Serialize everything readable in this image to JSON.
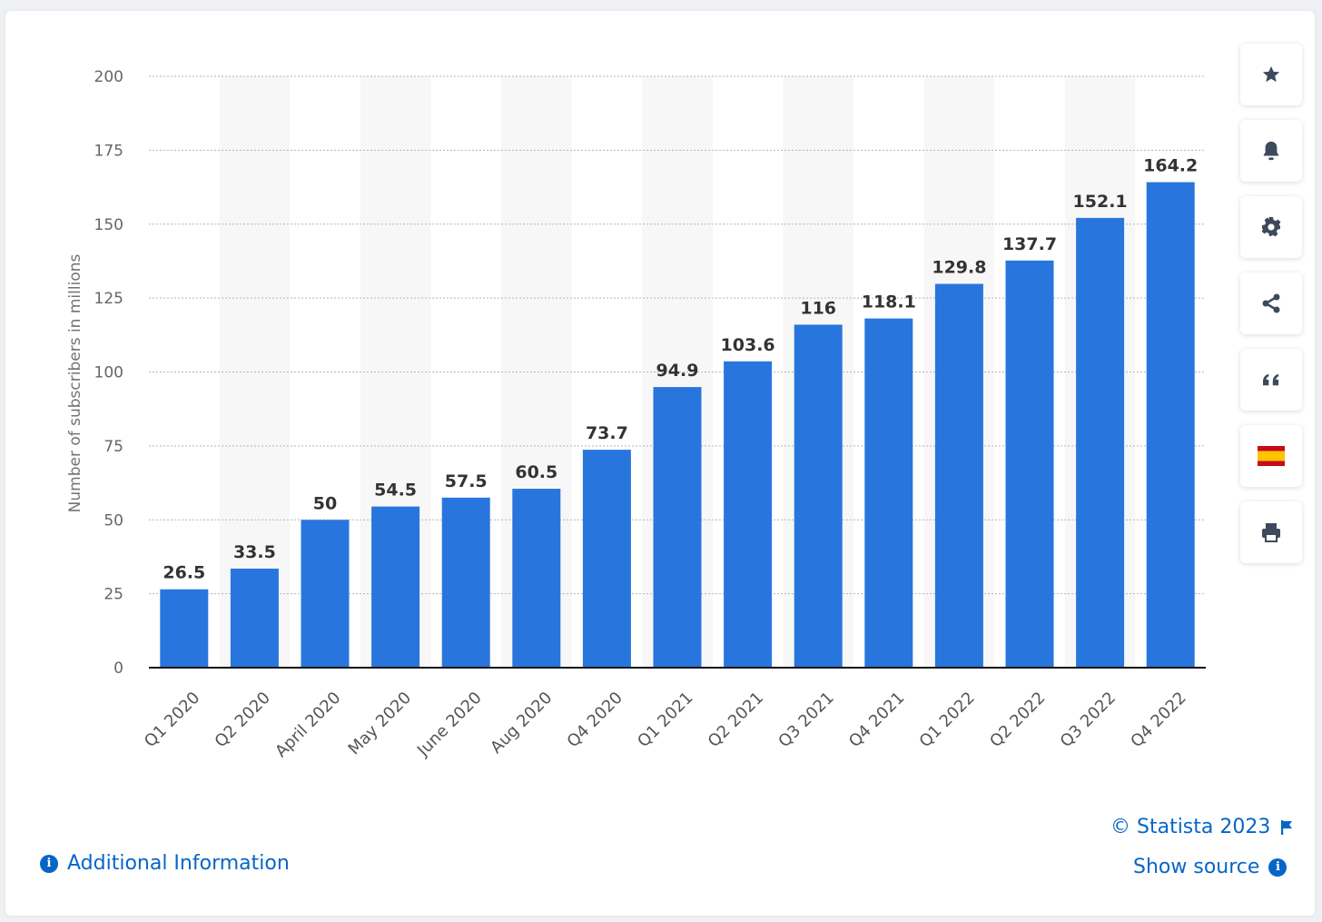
{
  "chart_data": {
    "type": "bar",
    "ylabel": "Number of subscribers in millions",
    "ylim": [
      0,
      200
    ],
    "yticks": [
      0,
      25,
      50,
      75,
      100,
      125,
      150,
      175,
      200
    ],
    "categories": [
      "Q1 2020",
      "Q2 2020",
      "April 2020",
      "May 2020",
      "June 2020",
      "Aug 2020",
      "Q4 2020",
      "Q1 2021",
      "Q2 2021",
      "Q3 2021",
      "Q4 2021",
      "Q1 2022",
      "Q2 2022",
      "Q3 2022",
      "Q4 2022"
    ],
    "values": [
      26.5,
      33.5,
      50,
      54.5,
      57.5,
      60.5,
      73.7,
      94.9,
      103.6,
      116,
      118.1,
      129.8,
      137.7,
      152.1,
      164.2
    ],
    "bar_color": "#2876dd",
    "grid": "dotted horizontal",
    "data_labels": true
  },
  "toolbar": {
    "icons": [
      "star-icon",
      "bell-icon",
      "gear-icon",
      "share-icon",
      "quote-icon",
      "spain-flag-icon",
      "print-icon"
    ]
  },
  "footer": {
    "copyright": "© Statista 2023",
    "show_source": "Show source",
    "additional_info": "Additional Information"
  },
  "colors": {
    "link": "#0666c7",
    "icon": "#3d4a5c",
    "bar": "#2876dd"
  }
}
